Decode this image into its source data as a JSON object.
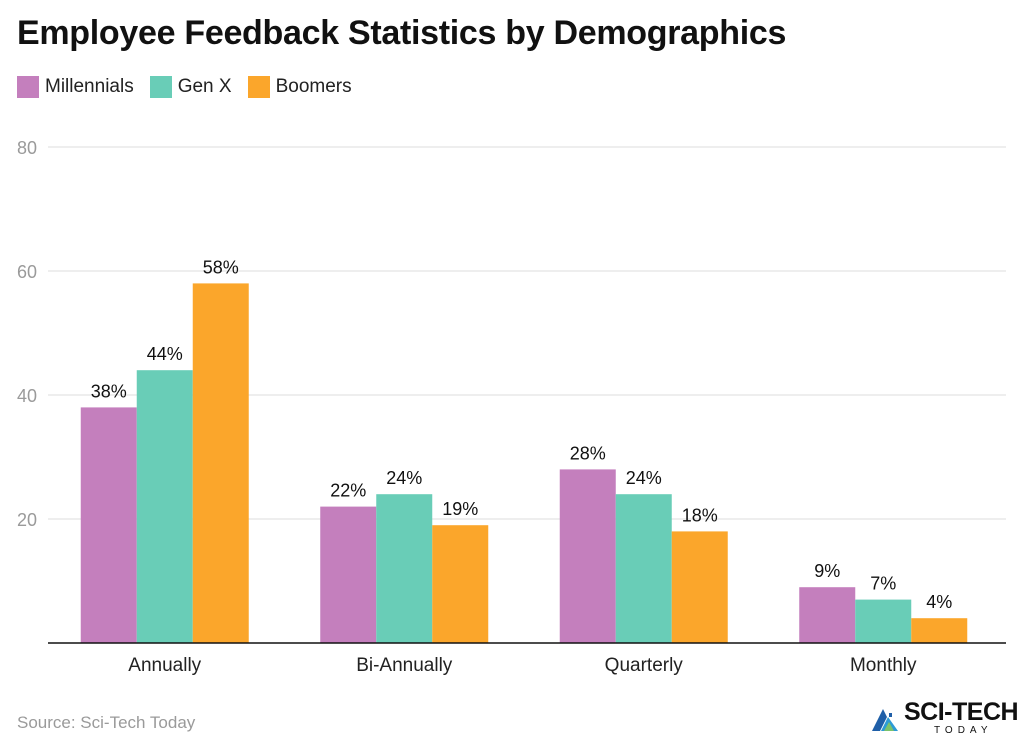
{
  "title": "Employee Feedback Statistics by Demographics",
  "source": "Source: Sci-Tech Today",
  "logo": {
    "main": "SCI-TECH",
    "sub": "TODAY",
    "icon": "sci-tech-logo-icon"
  },
  "colors": {
    "millennials": "#c47fbd",
    "genx": "#69cdb7",
    "boomers": "#fba62b",
    "grid": "#dddddd",
    "axis": "#111111"
  },
  "chart_data": {
    "type": "bar",
    "categories": [
      "Annually",
      "Bi-Annually",
      "Quarterly",
      "Monthly"
    ],
    "series": [
      {
        "name": "Millennials",
        "values": [
          38,
          22,
          28,
          9
        ],
        "labels": [
          "38%",
          "22%",
          "28%",
          "9%"
        ],
        "color": "#c47fbd"
      },
      {
        "name": "Gen X",
        "values": [
          44,
          24,
          24,
          7
        ],
        "labels": [
          "44%",
          "24%",
          "24%",
          "7%"
        ],
        "color": "#69cdb7"
      },
      {
        "name": "Boomers",
        "values": [
          58,
          19,
          18,
          4
        ],
        "labels": [
          "58%",
          "19%",
          "18%",
          "4%"
        ],
        "color": "#fba62b"
      }
    ],
    "yticks": [
      20,
      40,
      60,
      80
    ],
    "ylim": [
      0,
      80
    ],
    "grid": true,
    "legend": "top-left"
  }
}
